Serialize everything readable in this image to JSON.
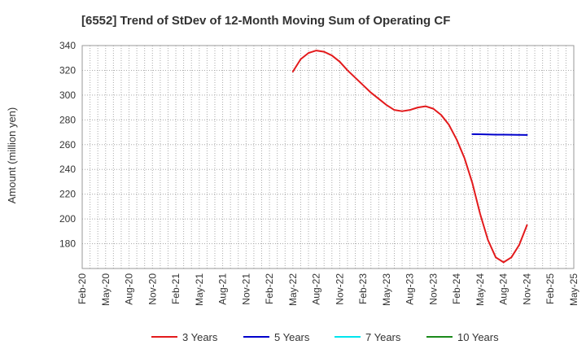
{
  "chart_data": {
    "type": "line",
    "title": "[6552]  Trend of StDev of 12-Month Moving Sum of Operating CF",
    "ylabel": "Amount (million yen)",
    "xlabel": "",
    "ylim": [
      160,
      340
    ],
    "yticks": [
      180,
      200,
      220,
      240,
      260,
      280,
      300,
      320,
      340
    ],
    "x_tick_labels": [
      "Feb-20",
      "May-20",
      "Aug-20",
      "Nov-20",
      "Feb-21",
      "May-21",
      "Aug-21",
      "Nov-21",
      "Feb-22",
      "May-22",
      "Aug-22",
      "Nov-22",
      "Feb-23",
      "May-23",
      "Aug-23",
      "Nov-23",
      "Feb-24",
      "May-24",
      "Aug-24",
      "Nov-24",
      "Feb-25",
      "May-25"
    ],
    "x_months": [
      "2020-02",
      "2020-03",
      "2020-04",
      "2020-05",
      "2020-06",
      "2020-07",
      "2020-08",
      "2020-09",
      "2020-10",
      "2020-11",
      "2020-12",
      "2021-01",
      "2021-02",
      "2021-03",
      "2021-04",
      "2021-05",
      "2021-06",
      "2021-07",
      "2021-08",
      "2021-09",
      "2021-10",
      "2021-11",
      "2021-12",
      "2022-01",
      "2022-02",
      "2022-03",
      "2022-04",
      "2022-05",
      "2022-06",
      "2022-07",
      "2022-08",
      "2022-09",
      "2022-10",
      "2022-11",
      "2022-12",
      "2023-01",
      "2023-02",
      "2023-03",
      "2023-04",
      "2023-05",
      "2023-06",
      "2023-07",
      "2023-08",
      "2023-09",
      "2023-10",
      "2023-11",
      "2023-12",
      "2024-01",
      "2024-02",
      "2024-03",
      "2024-04",
      "2024-05",
      "2024-06",
      "2024-07",
      "2024-08",
      "2024-09",
      "2024-10",
      "2024-11",
      "2024-12",
      "2025-01",
      "2025-02",
      "2025-03",
      "2025-04",
      "2025-05"
    ],
    "grid": true,
    "legend_position": "bottom",
    "series": [
      {
        "name": "3 Years",
        "color": "#e31a1c",
        "points": [
          [
            "2022-05",
            319
          ],
          [
            "2022-06",
            329
          ],
          [
            "2022-07",
            334
          ],
          [
            "2022-08",
            336
          ],
          [
            "2022-09",
            335
          ],
          [
            "2022-10",
            332
          ],
          [
            "2022-11",
            327
          ],
          [
            "2022-12",
            320
          ],
          [
            "2023-01",
            314
          ],
          [
            "2023-02",
            308
          ],
          [
            "2023-03",
            302
          ],
          [
            "2023-04",
            297
          ],
          [
            "2023-05",
            292
          ],
          [
            "2023-06",
            288
          ],
          [
            "2023-07",
            287
          ],
          [
            "2023-08",
            288
          ],
          [
            "2023-09",
            290
          ],
          [
            "2023-10",
            291
          ],
          [
            "2023-11",
            289
          ],
          [
            "2023-12",
            284
          ],
          [
            "2024-01",
            276
          ],
          [
            "2024-02",
            264
          ],
          [
            "2024-03",
            249
          ],
          [
            "2024-04",
            229
          ],
          [
            "2024-05",
            204
          ],
          [
            "2024-06",
            183
          ],
          [
            "2024-07",
            169
          ],
          [
            "2024-08",
            165
          ],
          [
            "2024-09",
            169
          ],
          [
            "2024-10",
            179
          ],
          [
            "2024-11",
            195
          ]
        ]
      },
      {
        "name": "5 Years",
        "color": "#0000cc",
        "points": [
          [
            "2024-04",
            268.5
          ],
          [
            "2024-05",
            268.4
          ],
          [
            "2024-06",
            268.2
          ],
          [
            "2024-07",
            268.1
          ],
          [
            "2024-08",
            268.1
          ],
          [
            "2024-09",
            268.0
          ],
          [
            "2024-10",
            267.9
          ],
          [
            "2024-11",
            267.8
          ]
        ]
      },
      {
        "name": "7 Years",
        "color": "#00e5ee",
        "points": []
      },
      {
        "name": "10 Years",
        "color": "#1a8a1a",
        "points": []
      }
    ]
  }
}
